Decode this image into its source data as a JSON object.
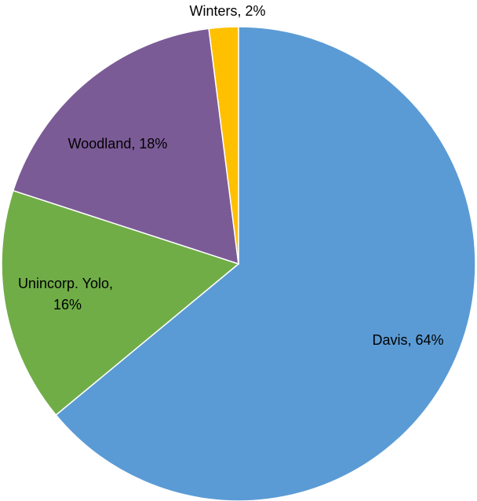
{
  "chart_data": {
    "type": "pie",
    "title": "",
    "start_angle_deg": 0,
    "direction": "clockwise",
    "slices": [
      {
        "label": "Davis",
        "value": 64,
        "value_label": "64%",
        "color": "#5B9BD5"
      },
      {
        "label": "Unincorp. Yolo",
        "value": 16,
        "value_label": "16%",
        "color": "#70AD47"
      },
      {
        "label": "Woodland",
        "value": 18,
        "value_label": "18%",
        "color": "#7B5B96"
      },
      {
        "label": "Winters",
        "value": 2,
        "value_label": "2%",
        "color": "#FFC000"
      }
    ],
    "legend": "none",
    "data_labels": "category, percentage"
  }
}
